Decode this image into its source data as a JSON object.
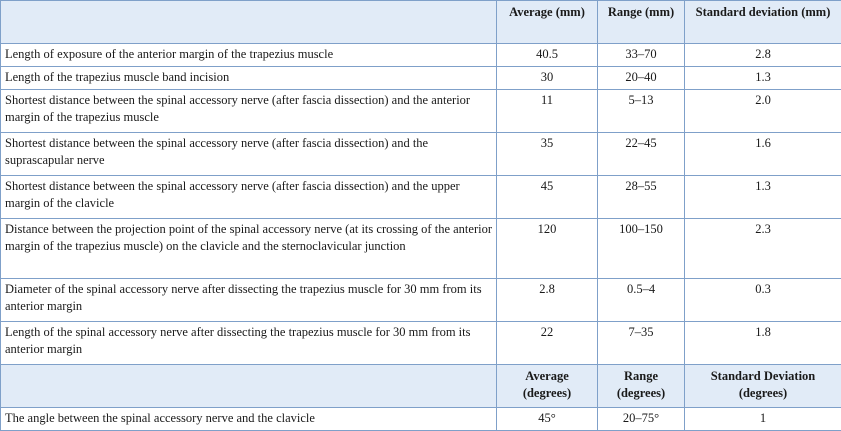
{
  "header": {
    "col_label": "",
    "avg": "Average (mm)",
    "range": "Range (mm)",
    "sd": "Standard deviation (mm)"
  },
  "rows": [
    {
      "label": "Length of exposure of the anterior margin of the trapezius muscle",
      "avg": "40.5",
      "range": "33–70",
      "sd": "2.8"
    },
    {
      "label": "Length of the trapezius muscle band incision",
      "avg": "30",
      "range": "20–40",
      "sd": "1.3"
    },
    {
      "label": "Shortest distance between the spinal accessory nerve (after fascia dissection) and the anterior margin of the trapezius muscle",
      "avg": "11",
      "range": "5–13",
      "sd": "2.0"
    },
    {
      "label": "Shortest distance between the spinal accessory nerve (after fascia dissection) and the suprascapular nerve",
      "avg": "35",
      "range": "22–45",
      "sd": "1.6"
    },
    {
      "label": "Shortest distance between the spinal accessory nerve (after fascia dissection) and the upper margin of the clavicle",
      "avg": "45",
      "range": "28–55",
      "sd": "1.3"
    },
    {
      "label": "Distance between the projection point of the spinal accessory nerve (at its crossing of the anterior margin of the trapezius muscle) on the clavicle and the sternoclavicular junction",
      "avg": "120",
      "range": "100–150",
      "sd": "2.3"
    },
    {
      "label": "Diameter of the spinal accessory nerve after dissecting the trapezius muscle for 30 mm from its anterior margin",
      "avg": "2.8",
      "range": "0.5–4",
      "sd": "0.3"
    },
    {
      "label": "Length of the spinal accessory nerve after dissecting the trapezius muscle for 30 mm from its anterior margin",
      "avg": "22",
      "range": "7–35",
      "sd": "1.8"
    }
  ],
  "header2": {
    "col_label": "",
    "avg": "Average (degrees)",
    "range": "Range (degrees)",
    "sd": "Standard Deviation (degrees)"
  },
  "rows2": [
    {
      "label": "The angle between the spinal accessory nerve and the clavicle",
      "avg": "45°",
      "range": "20–75°",
      "sd": "1"
    }
  ],
  "colors": {
    "header_bg": "#e1ebf7",
    "border": "#7fa0c9"
  }
}
